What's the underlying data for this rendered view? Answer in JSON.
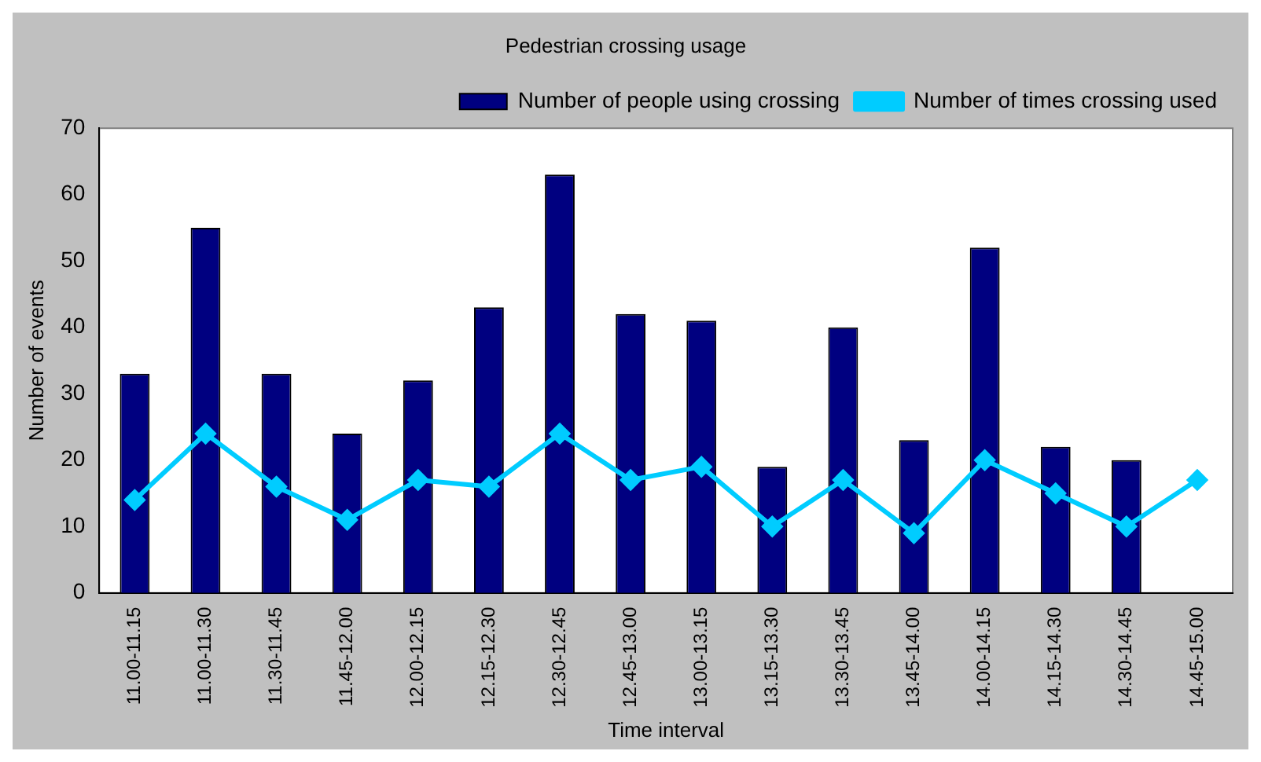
{
  "chart_data": {
    "type": "bar",
    "title": "Pedestrian crossing usage",
    "xlabel": "Time interval",
    "ylabel": "Number of events",
    "categories": [
      "11.00-11.15",
      "11.00-11.30",
      "11.30-11.45",
      "11.45-12.00",
      "12.00-12.15",
      "12.15-12.30",
      "12.30-12.45",
      "12.45-13.00",
      "13.00-13.15",
      "13.15-13.30",
      "13.30-13.45",
      "13.45-14.00",
      "14.00-14.15",
      "14.15-14.30",
      "14.30-14.45",
      "14.45-15.00"
    ],
    "series": [
      {
        "name": "Number of people using crossing",
        "color": "#000080",
        "values": [
          33,
          55,
          33,
          24,
          32,
          43,
          63,
          42,
          41,
          19,
          40,
          23,
          52,
          22,
          20,
          null
        ]
      },
      {
        "name": "Number of times crossing used",
        "type": "line",
        "color": "#00ccff",
        "marker": "diamond",
        "values": [
          14,
          24,
          16,
          11,
          17,
          16,
          24,
          17,
          19,
          10,
          17,
          9,
          20,
          15,
          10,
          17
        ]
      }
    ],
    "ylim": [
      0,
      70
    ],
    "yticks": [
      0,
      10,
      20,
      30,
      40,
      50,
      60,
      70
    ],
    "grid": false,
    "legend": "top right"
  }
}
